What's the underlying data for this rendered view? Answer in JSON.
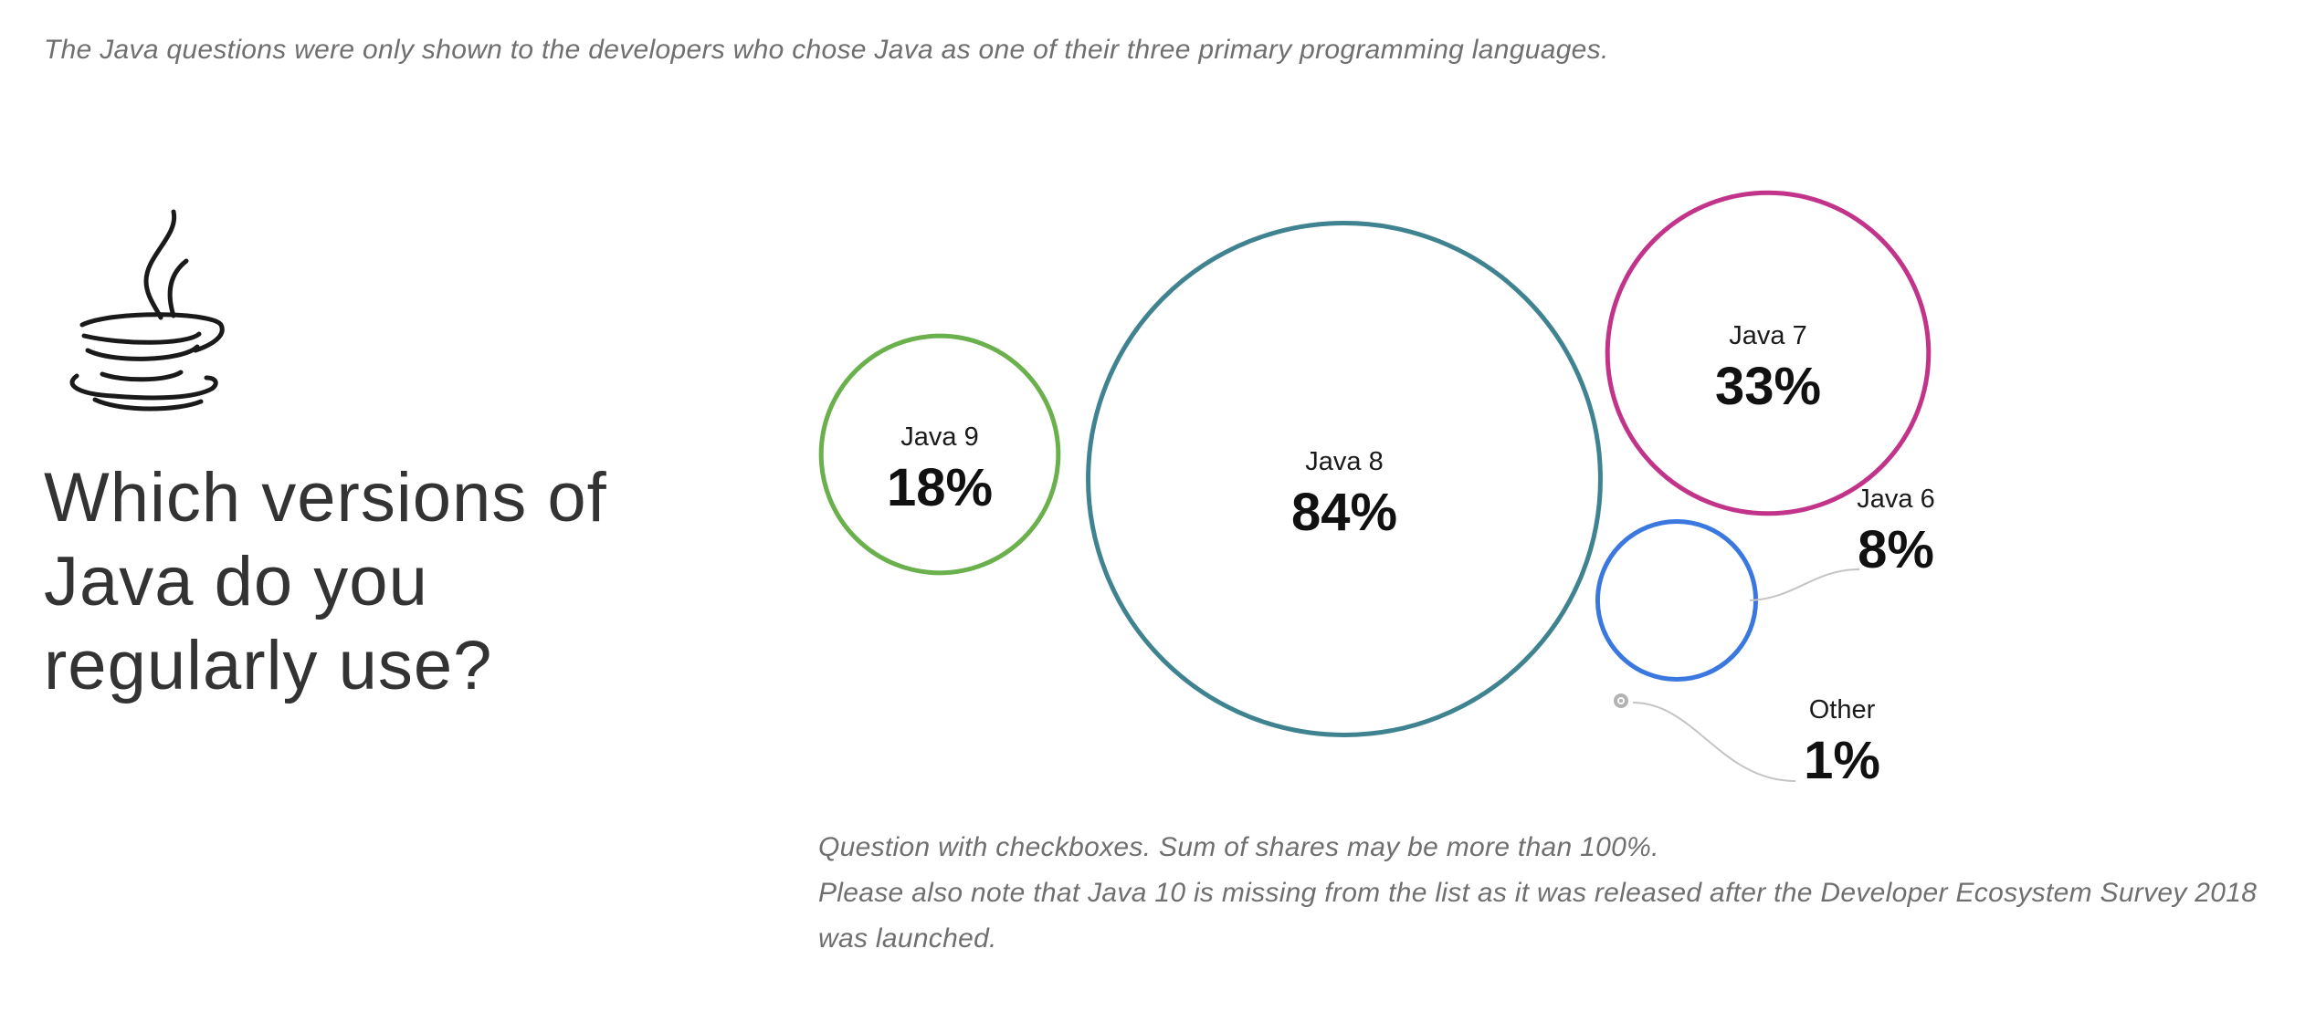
{
  "intro_note": "The Java questions were only shown to the developers who chose Java as one of their three primary programming languages.",
  "question": {
    "title_lines": [
      "Which versions of",
      "Java do you",
      "regularly use?"
    ]
  },
  "icon": "java-coffee-cup-icon",
  "chart_data": {
    "type": "bubble",
    "title": "",
    "unit": "%",
    "items": [
      {
        "label": "Java 9",
        "value": 18,
        "value_label": "18%",
        "color": "#6ab04c"
      },
      {
        "label": "Java 8",
        "value": 84,
        "value_label": "84%",
        "color": "#3f8391"
      },
      {
        "label": "Java 7",
        "value": 33,
        "value_label": "33%",
        "color": "#c2348a"
      },
      {
        "label": "Java 6",
        "value": 8,
        "value_label": "8%",
        "color": "#3a78e0"
      },
      {
        "label": "Other",
        "value": 1,
        "value_label": "1%",
        "color": "#b3b3b3"
      }
    ]
  },
  "footnotes": [
    "Question with checkboxes. Sum of shares may be more than 100%.",
    "Please also note that Java 10 is missing from the list as it was released after the Developer Ecosystem Survey 2018 was launched."
  ]
}
